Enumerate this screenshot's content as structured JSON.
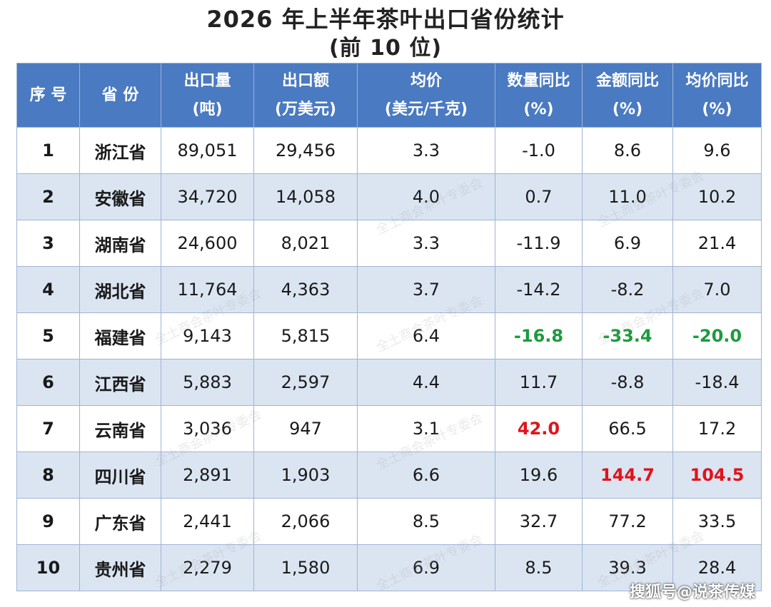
{
  "title": "2026 年上半年茶叶出口省份统计",
  "subtitle": "(前 10 位)",
  "columns": [
    {
      "l1": "序 号",
      "l2": ""
    },
    {
      "l1": "省 份",
      "l2": ""
    },
    {
      "l1": "出口量",
      "l2": "(吨)"
    },
    {
      "l1": "出口额",
      "l2": "(万美元)"
    },
    {
      "l1": "均价",
      "l2": "(美元/千克)"
    },
    {
      "l1": "数量同比",
      "l2": "(%)"
    },
    {
      "l1": "金额同比",
      "l2": "(%)"
    },
    {
      "l1": "均价同比",
      "l2": "(%)"
    }
  ],
  "rows": [
    {
      "idx": "1",
      "prov": "浙江省",
      "vol": "89,051",
      "amt": "29,456",
      "price": "3.3",
      "vol_yoy": "-1.0",
      "amt_yoy": "8.6",
      "price_yoy": "9.6"
    },
    {
      "idx": "2",
      "prov": "安徽省",
      "vol": "34,720",
      "amt": "14,058",
      "price": "4.0",
      "vol_yoy": "0.7",
      "amt_yoy": "11.0",
      "price_yoy": "10.2"
    },
    {
      "idx": "3",
      "prov": "湖南省",
      "vol": "24,600",
      "amt": "8,021",
      "price": "3.3",
      "vol_yoy": "-11.9",
      "amt_yoy": "6.9",
      "price_yoy": "21.4"
    },
    {
      "idx": "4",
      "prov": "湖北省",
      "vol": "11,764",
      "amt": "4,363",
      "price": "3.7",
      "vol_yoy": "-14.2",
      "amt_yoy": "-8.2",
      "price_yoy": "7.0"
    },
    {
      "idx": "5",
      "prov": "福建省",
      "vol": "9,143",
      "amt": "5,815",
      "price": "6.4",
      "vol_yoy": "-16.8",
      "amt_yoy": "-33.4",
      "price_yoy": "-20.0"
    },
    {
      "idx": "6",
      "prov": "江西省",
      "vol": "5,883",
      "amt": "2,597",
      "price": "4.4",
      "vol_yoy": "11.7",
      "amt_yoy": "-8.8",
      "price_yoy": "-18.4"
    },
    {
      "idx": "7",
      "prov": "云南省",
      "vol": "3,036",
      "amt": "947",
      "price": "3.1",
      "vol_yoy": "42.0",
      "amt_yoy": "66.5",
      "price_yoy": "17.2"
    },
    {
      "idx": "8",
      "prov": "四川省",
      "vol": "2,891",
      "amt": "1,903",
      "price": "6.6",
      "vol_yoy": "19.6",
      "amt_yoy": "144.7",
      "price_yoy": "104.5"
    },
    {
      "idx": "9",
      "prov": "广东省",
      "vol": "2,441",
      "amt": "2,066",
      "price": "8.5",
      "vol_yoy": "32.7",
      "amt_yoy": "77.2",
      "price_yoy": "33.5"
    },
    {
      "idx": "10",
      "prov": "贵州省",
      "vol": "2,279",
      "amt": "1,580",
      "price": "6.9",
      "vol_yoy": "8.5",
      "amt_yoy": "39.3",
      "price_yoy": "28.4"
    }
  ],
  "highlight_colors": {
    "negative_highlight": "#1c9b3e",
    "positive_highlight": "#e0131b",
    "header_bg": "#4a7ac1",
    "alt_row_bg": "#dbe5f2"
  },
  "watermark": "全土商会茶叶专委会",
  "source_mark": "搜狐号@说茶传媒"
}
